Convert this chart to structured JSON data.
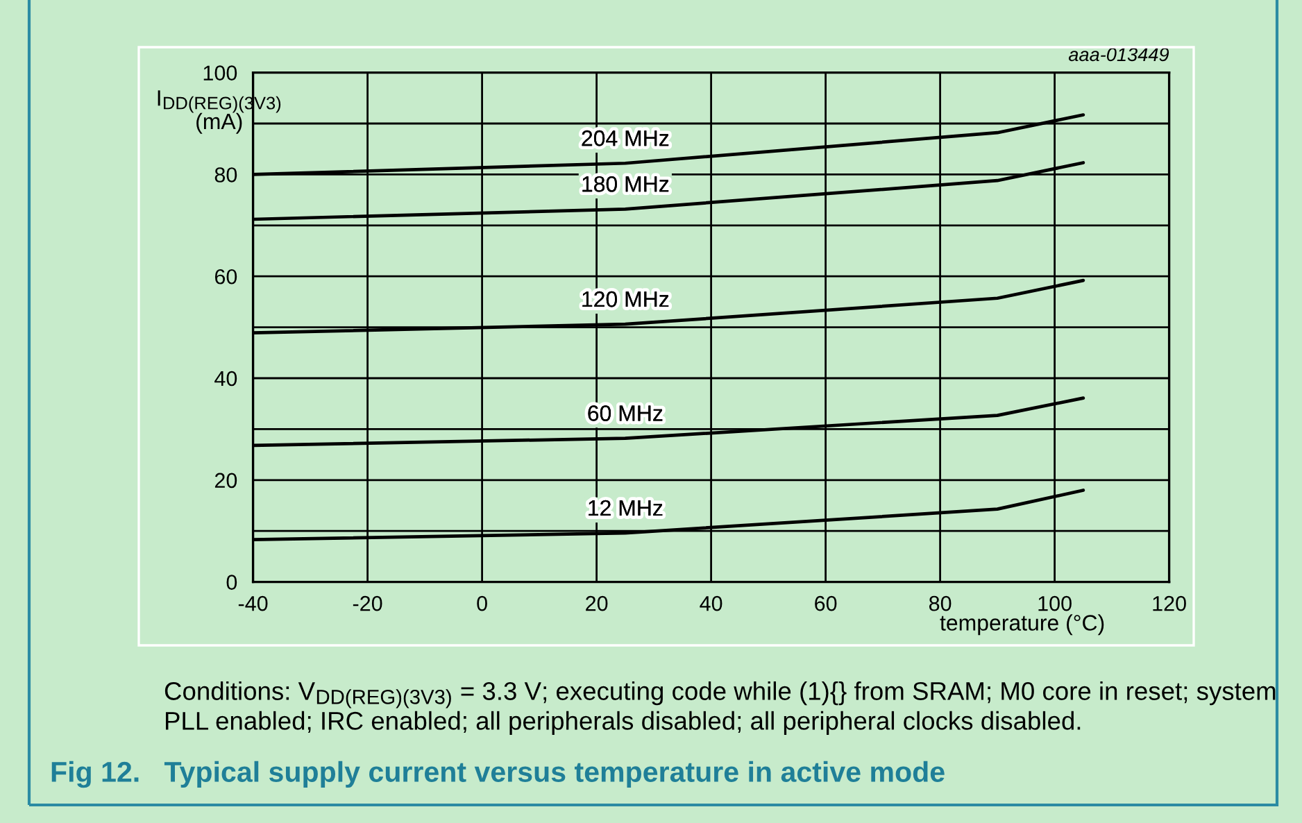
{
  "chart_data": {
    "type": "line",
    "title": "Fig 12.   Typical supply current versus temperature in active mode",
    "xlabel": "temperature (°C)",
    "ylabel": "I$_{DD(REG)(3V3)}$\n(mA)",
    "x": [
      -40,
      25,
      90,
      105
    ],
    "series": [
      {
        "name": "204 MHz",
        "color": "#000000",
        "values": [
          80.0,
          82.2,
          88.2,
          91.7
        ]
      },
      {
        "name": "180 MHz",
        "color": "#000000",
        "values": [
          71.2,
          73.2,
          78.8,
          82.3
        ]
      },
      {
        "name": "120 MHz",
        "color": "#000000",
        "values": [
          48.9,
          50.6,
          55.7,
          59.2
        ]
      },
      {
        "name": "60 MHz",
        "color": "#000000",
        "values": [
          26.8,
          28.2,
          32.7,
          36.1
        ]
      },
      {
        "name": "12 MHz",
        "color": "#000000",
        "values": [
          8.3,
          9.6,
          14.3,
          18.0
        ]
      }
    ],
    "xlim": [
      -40,
      120
    ],
    "ylim": [
      0,
      100
    ],
    "xticks": [
      -40,
      -20,
      0,
      20,
      40,
      60,
      80,
      100,
      120
    ],
    "yticks": [
      0,
      {
        "value": 10,
        "label": null
      },
      20,
      {
        "value": 30,
        "label": null
      },
      40,
      {
        "value": 50,
        "label": null
      },
      60,
      {
        "value": 70,
        "label": null
      },
      80,
      {
        "value": 90,
        "label": null
      },
      100
    ],
    "grid": true,
    "line_style": "solid",
    "annotations": [
      "aaa-013449",
      "Conditions: V$_{DD(REG)(3V3)}$ = 3.3 V; executing code while (1){} from SRAM; M0 core in reset; system\nPLL enabled; IRC enabled; all peripherals disabled; all peripheral clocks disabled."
    ]
  }
}
